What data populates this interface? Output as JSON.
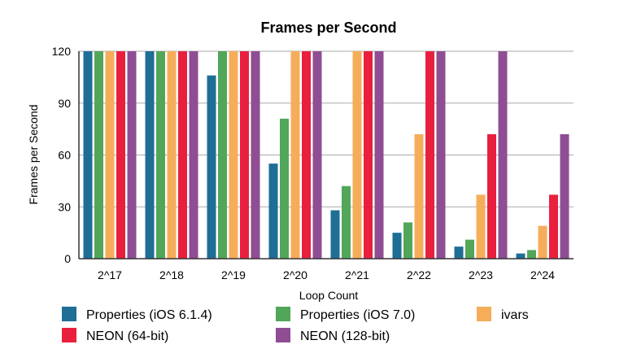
{
  "chart_data": {
    "type": "bar",
    "title": "Frames per Second",
    "xlabel": "Loop Count",
    "ylabel": "Frames per Second",
    "ylim": [
      0,
      120
    ],
    "yticks": [
      "0",
      "30",
      "60",
      "90",
      "120"
    ],
    "ytick_values": [
      0,
      30,
      60,
      90,
      120
    ],
    "grid": true,
    "legend_position": "bottom",
    "categories": [
      "2^17",
      "2^18",
      "2^19",
      "2^20",
      "2^21",
      "2^22",
      "2^23",
      "2^24"
    ],
    "series": [
      {
        "name": "Properties (iOS 6.1.4)",
        "color": "#1e6e96",
        "values": [
          120,
          120,
          106,
          55,
          28,
          15,
          7,
          3
        ]
      },
      {
        "name": "Properties (iOS 7.0)",
        "color": "#51a65a",
        "values": [
          120,
          120,
          120,
          81,
          42,
          21,
          11,
          5
        ]
      },
      {
        "name": "ivars",
        "color": "#f6ad5a",
        "values": [
          120,
          120,
          120,
          120,
          120,
          72,
          37,
          19
        ]
      },
      {
        "name": "NEON (64-bit)",
        "color": "#e8203e",
        "values": [
          120,
          120,
          120,
          120,
          120,
          120,
          72,
          37
        ]
      },
      {
        "name": "NEON (128-bit)",
        "color": "#8f4d93",
        "values": [
          120,
          120,
          120,
          120,
          120,
          120,
          120,
          72
        ]
      }
    ]
  }
}
